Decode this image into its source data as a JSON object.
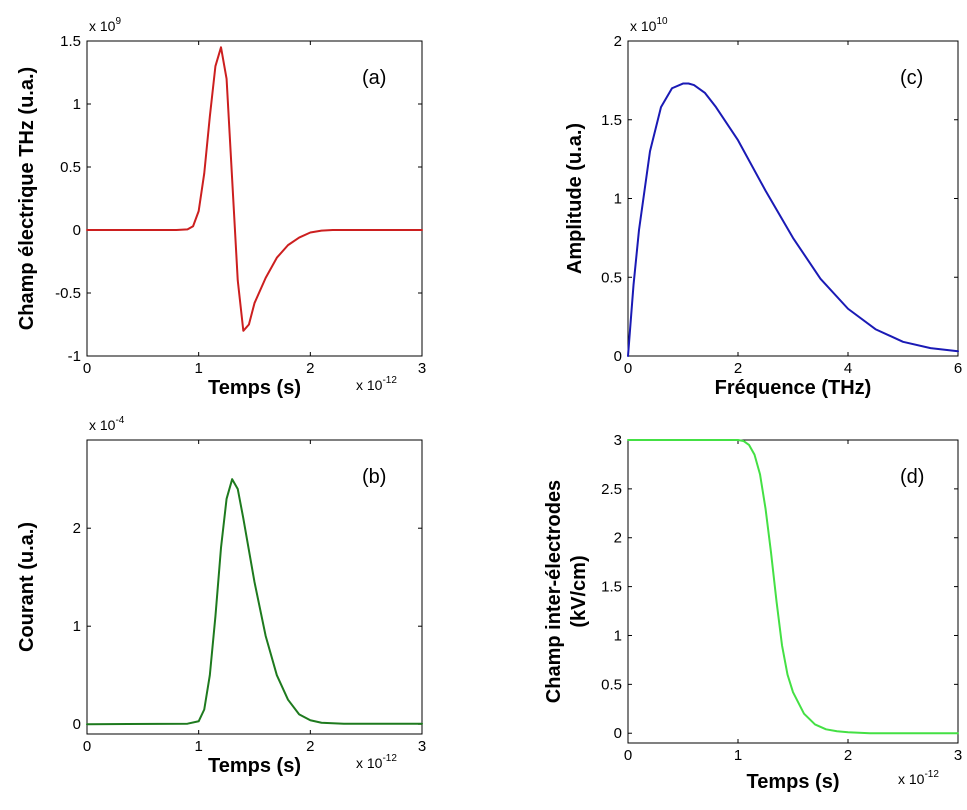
{
  "chart_data": [
    {
      "type": "line",
      "panel": "(a)",
      "title": "",
      "xlabel": "Temps (s)",
      "ylabel": "Champ électrique THz (u.a.)",
      "x_multiplier": {
        "base": "x 10",
        "exp": "-12"
      },
      "y_multiplier": {
        "base": "x 10",
        "exp": "9"
      },
      "xlim": [
        0,
        3
      ],
      "ylim": [
        -1,
        1.5
      ],
      "xticks": [
        0,
        1,
        2,
        3
      ],
      "xtick_labels": [
        "0",
        "1",
        "2",
        "3"
      ],
      "yticks": [
        -1,
        -0.5,
        0,
        0.5,
        1,
        1.5
      ],
      "ytick_labels": [
        "-1",
        "-0.5",
        "0",
        "0.5",
        "1",
        "1.5"
      ],
      "grid": false,
      "series": [
        {
          "color": "#cc1f1f",
          "x": [
            0,
            0.8,
            0.9,
            0.95,
            1.0,
            1.05,
            1.1,
            1.15,
            1.2,
            1.25,
            1.3,
            1.35,
            1.4,
            1.45,
            1.5,
            1.6,
            1.7,
            1.8,
            1.9,
            2.0,
            2.1,
            2.2,
            2.4,
            3.0
          ],
          "y": [
            0,
            0,
            0.005,
            0.03,
            0.15,
            0.45,
            0.9,
            1.3,
            1.45,
            1.2,
            0.4,
            -0.4,
            -0.8,
            -0.75,
            -0.58,
            -0.38,
            -0.22,
            -0.12,
            -0.06,
            -0.02,
            -0.005,
            0,
            0,
            0
          ]
        }
      ]
    },
    {
      "type": "line",
      "panel": "(b)",
      "title": "",
      "xlabel": "Temps (s)",
      "ylabel": "Courant (u.a.)",
      "x_multiplier": {
        "base": "x 10",
        "exp": "-12"
      },
      "y_multiplier": {
        "base": "x 10",
        "exp": "-4"
      },
      "xlim": [
        0,
        3
      ],
      "ylim": [
        -0.1,
        2.9
      ],
      "xticks": [
        0,
        1,
        2,
        3
      ],
      "xtick_labels": [
        "0",
        "1",
        "2",
        "3"
      ],
      "yticks": [
        0,
        1,
        2
      ],
      "ytick_labels": [
        "0",
        "1",
        "2"
      ],
      "grid": false,
      "series": [
        {
          "color": "#1e7a1e",
          "x": [
            0,
            0.9,
            1.0,
            1.05,
            1.1,
            1.15,
            1.2,
            1.25,
            1.3,
            1.35,
            1.4,
            1.5,
            1.6,
            1.7,
            1.8,
            1.9,
            2.0,
            2.1,
            2.3,
            3.0
          ],
          "y": [
            0,
            0.005,
            0.03,
            0.15,
            0.5,
            1.1,
            1.8,
            2.3,
            2.5,
            2.4,
            2.1,
            1.45,
            0.9,
            0.5,
            0.25,
            0.1,
            0.04,
            0.015,
            0.005,
            0.005
          ]
        }
      ]
    },
    {
      "type": "line",
      "panel": "(c)",
      "title": "",
      "xlabel": "Fréquence (THz)",
      "ylabel": "Amplitude (u.a.)",
      "x_multiplier": null,
      "y_multiplier": {
        "base": "x 10",
        "exp": "10"
      },
      "xlim": [
        0,
        6
      ],
      "ylim": [
        0,
        2
      ],
      "xticks": [
        0,
        2,
        4,
        6
      ],
      "xtick_labels": [
        "0",
        "2",
        "4",
        "6"
      ],
      "yticks": [
        0,
        0.5,
        1,
        1.5,
        2
      ],
      "ytick_labels": [
        "0",
        "0.5",
        "1",
        "1.5",
        "2"
      ],
      "grid": false,
      "series": [
        {
          "color": "#1a1ab5",
          "x": [
            0,
            0.1,
            0.2,
            0.4,
            0.6,
            0.8,
            1.0,
            1.1,
            1.2,
            1.4,
            1.6,
            2.0,
            2.5,
            3.0,
            3.5,
            4.0,
            4.5,
            5.0,
            5.5,
            6.0
          ],
          "y": [
            0.0,
            0.45,
            0.8,
            1.3,
            1.58,
            1.7,
            1.73,
            1.73,
            1.72,
            1.67,
            1.58,
            1.37,
            1.05,
            0.75,
            0.49,
            0.3,
            0.17,
            0.09,
            0.05,
            0.03
          ]
        }
      ]
    },
    {
      "type": "line",
      "panel": "(d)",
      "title": "",
      "xlabel": "Temps (s)",
      "ylabel": "Champ inter-électrodes",
      "ylabel2": "(kV/cm)",
      "x_multiplier": {
        "base": "x 10",
        "exp": "-12"
      },
      "y_multiplier": null,
      "xlim": [
        0,
        3
      ],
      "ylim": [
        -0.1,
        3
      ],
      "xticks": [
        0,
        1,
        2,
        3
      ],
      "xtick_labels": [
        "0",
        "1",
        "2",
        "3"
      ],
      "yticks": [
        0,
        0.5,
        1,
        1.5,
        2,
        2.5,
        3
      ],
      "ytick_labels": [
        "0",
        "0.5",
        "1",
        "1.5",
        "2",
        "2.5",
        "3"
      ],
      "grid": false,
      "series": [
        {
          "color": "#44e044",
          "x": [
            0,
            1.0,
            1.05,
            1.1,
            1.15,
            1.2,
            1.25,
            1.3,
            1.35,
            1.4,
            1.45,
            1.5,
            1.6,
            1.7,
            1.8,
            1.9,
            2.0,
            2.2,
            2.5,
            3.0
          ],
          "y": [
            3,
            3,
            2.99,
            2.95,
            2.85,
            2.65,
            2.3,
            1.85,
            1.35,
            0.9,
            0.6,
            0.42,
            0.2,
            0.09,
            0.04,
            0.02,
            0.01,
            0.0,
            0.0,
            0.0
          ]
        }
      ]
    }
  ]
}
